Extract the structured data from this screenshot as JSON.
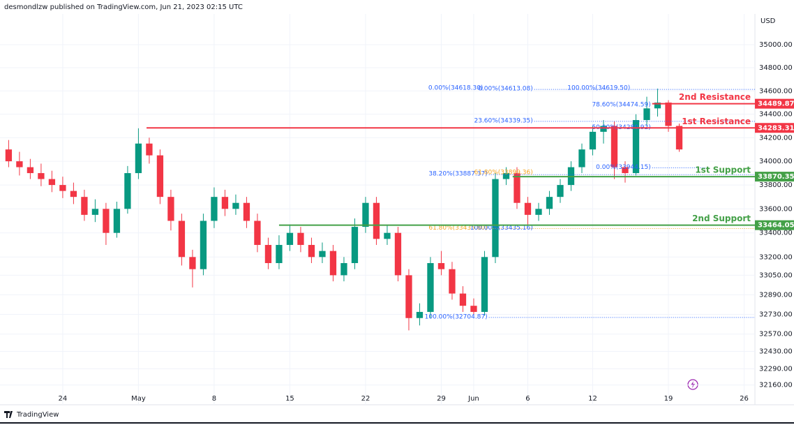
{
  "header": {
    "text": "desmondlzw published on TradingView.com, Jun 21, 2023 02:15 UTC"
  },
  "footer": {
    "brand": "TradingView"
  },
  "chart_data": {
    "type": "candlestick",
    "currency": "USD",
    "log_scale": true,
    "up_color": "#089981",
    "down_color": "#f23645",
    "x": [
      0,
      1,
      2,
      3,
      4,
      5,
      6,
      7,
      8,
      9,
      10,
      11,
      12,
      13,
      14,
      15,
      16,
      17,
      18,
      19,
      20,
      21,
      22,
      23,
      24,
      25,
      26,
      27,
      28,
      29,
      30,
      31,
      32,
      33,
      34,
      35,
      36,
      37,
      38,
      39,
      40,
      41,
      42,
      43,
      44,
      45,
      46,
      47,
      48,
      49,
      50,
      51,
      52,
      53,
      54,
      55,
      56,
      57,
      58,
      59,
      60,
      61,
      62
    ],
    "open": [
      34100,
      34000,
      33950,
      33900,
      33850,
      33800,
      33750,
      33700,
      33550,
      33600,
      33400,
      33600,
      33900,
      34150,
      34050,
      33700,
      33500,
      33200,
      33100,
      33500,
      33700,
      33600,
      33650,
      33500,
      33300,
      33150,
      33300,
      33400,
      33300,
      33200,
      33250,
      33050,
      33150,
      33450,
      33650,
      33350,
      33400,
      33050,
      32700,
      32750,
      33150,
      33100,
      32900,
      32800,
      32750,
      33200,
      33850,
      33900,
      33650,
      33550,
      33600,
      33700,
      33800,
      33950,
      34100,
      34250,
      34300,
      33950,
      33900,
      34350,
      34450,
      34500,
      34300
    ],
    "high": [
      34180,
      34080,
      34020,
      33980,
      33920,
      33870,
      33820,
      33760,
      33680,
      33650,
      33660,
      33960,
      34280,
      34200,
      34100,
      33760,
      33560,
      33260,
      33560,
      33780,
      33760,
      33720,
      33700,
      33560,
      33360,
      33380,
      33470,
      33450,
      33360,
      33320,
      33300,
      33200,
      33520,
      33700,
      33700,
      33460,
      33450,
      33100,
      32820,
      33200,
      33250,
      33160,
      32960,
      32860,
      33250,
      33900,
      33950,
      33950,
      33700,
      33650,
      33750,
      33850,
      34000,
      34150,
      34300,
      34350,
      34340,
      34000,
      34400,
      34550,
      34620,
      34520,
      34320
    ],
    "low": [
      33950,
      33880,
      33850,
      33790,
      33740,
      33690,
      33640,
      33500,
      33490,
      33300,
      33360,
      33560,
      33850,
      33980,
      33640,
      33420,
      33130,
      32950,
      33050,
      33440,
      33540,
      33550,
      33440,
      33240,
      33100,
      33100,
      33250,
      33240,
      33150,
      33150,
      33000,
      33000,
      33100,
      33400,
      33300,
      33300,
      33000,
      32600,
      32640,
      32700,
      33050,
      32850,
      32750,
      32720,
      32720,
      33150,
      33800,
      33600,
      33470,
      33500,
      33550,
      33650,
      33750,
      33900,
      34050,
      34150,
      33850,
      33820,
      33880,
      34300,
      34380,
      34250,
      34080
    ],
    "close": [
      34000,
      33950,
      33900,
      33850,
      33800,
      33750,
      33700,
      33550,
      33600,
      33400,
      33600,
      33900,
      34150,
      34050,
      33700,
      33500,
      33200,
      33100,
      33500,
      33700,
      33600,
      33650,
      33500,
      33300,
      33150,
      33300,
      33400,
      33300,
      33200,
      33250,
      33050,
      33150,
      33450,
      33650,
      33350,
      33400,
      33050,
      32700,
      32750,
      33150,
      33100,
      32900,
      32800,
      32750,
      33200,
      33850,
      33900,
      33650,
      33550,
      33600,
      33700,
      33800,
      33950,
      34100,
      34250,
      34300,
      33950,
      33900,
      34350,
      34450,
      34500,
      34300,
      34100
    ],
    "xlim": [
      -0.8,
      69
    ],
    "xticks": [
      {
        "value": 5,
        "label": "24"
      },
      {
        "value": 12,
        "label": "May"
      },
      {
        "value": 19,
        "label": "8"
      },
      {
        "value": 26,
        "label": "15"
      },
      {
        "value": 33,
        "label": "22"
      },
      {
        "value": 40,
        "label": "29"
      },
      {
        "value": 43,
        "label": "Jun"
      },
      {
        "value": 48,
        "label": "6"
      },
      {
        "value": 54,
        "label": "12"
      },
      {
        "value": 61,
        "label": "19"
      },
      {
        "value": 68,
        "label": "26"
      }
    ],
    "ylim": [
      32086,
      35391
    ],
    "yticks": [
      {
        "value": 35000,
        "label": "35000.00"
      },
      {
        "value": 34800,
        "label": "34800.00"
      },
      {
        "value": 34600,
        "label": "34600.00"
      },
      {
        "value": 34400,
        "label": "34400.00"
      },
      {
        "value": 34200,
        "label": "34200.00"
      },
      {
        "value": 34000,
        "label": "34000.00"
      },
      {
        "value": 33800,
        "label": "33800.00"
      },
      {
        "value": 33600,
        "label": "33600.00"
      },
      {
        "value": 33400,
        "label": "33400.00"
      },
      {
        "value": 33200,
        "label": "33200.00"
      },
      {
        "value": 33050,
        "label": "33050.00"
      },
      {
        "value": 32890,
        "label": "32890.00"
      },
      {
        "value": 32730,
        "label": "32730.00"
      },
      {
        "value": 32570,
        "label": "32570.00"
      },
      {
        "value": 32430,
        "label": "32430.00"
      },
      {
        "value": 32290,
        "label": "32290.00"
      },
      {
        "value": 32160,
        "label": "32160.00"
      }
    ],
    "levels": [
      {
        "name": "2nd Resistance",
        "value": 34489.87,
        "start": 59.5,
        "color": "#f23645"
      },
      {
        "name": "1st Resistance",
        "value": 34283.31,
        "start": 12.75,
        "color": "#f23645"
      },
      {
        "name": "1st Support",
        "value": 33870.35,
        "start": 46.6,
        "color": "#43a047"
      },
      {
        "name": "2nd Support",
        "value": 33464.05,
        "start": 25,
        "color": "#43a047"
      }
    ],
    "fib_labels": [
      {
        "text": "0.00%(34618.30)",
        "price": 34618.3,
        "x0": 44.0,
        "x1": 44.0,
        "color": "#2962ff"
      },
      {
        "text": "0.00%(34613.08)",
        "price": 34613.08,
        "x0": 48.6,
        "x1": 69,
        "color": "#2962ff"
      },
      {
        "text": "100.00%(34619.50)",
        "price": 34619.5,
        "x0": 57.6,
        "x1": 57.6,
        "color": "#2962ff"
      },
      {
        "text": "78.60%(34474.59)",
        "price": 34474.59,
        "x0": 59.5,
        "x1": 59.5,
        "color": "#2962ff"
      },
      {
        "text": "23.60%(34339.35)",
        "price": 34339.35,
        "x0": 48.6,
        "x1": 69,
        "color": "#2962ff"
      },
      {
        "text": "50.00%(34280.92)",
        "price": 34280.92,
        "x0": 59.5,
        "x1": 59.5,
        "color": "#2962ff"
      },
      {
        "text": "0.00%(33944.15)",
        "price": 33944.15,
        "x0": 59.5,
        "x1": 64.4,
        "color": "#2962ff"
      },
      {
        "text": "38.20%(33887.37)",
        "price": 33887.37,
        "x0": 44.4,
        "x1": 69,
        "color": "#2962ff"
      },
      {
        "text": "61.80%(33899.36)",
        "price": 33899.36,
        "x0": 48.6,
        "x1": 48.6,
        "color": "#f5a623"
      },
      {
        "text": "61.80%(33435.80)",
        "price": 33435.8,
        "x0": 44.4,
        "x1": 69,
        "color": "#f5a623"
      },
      {
        "text": "100.00%(33435.16)",
        "price": 33435.16,
        "x0": 48.6,
        "x1": 48.6,
        "color": "#2962ff"
      },
      {
        "text": "100.00%(32704.87)",
        "price": 32704.87,
        "x0": 44.4,
        "x1": 69,
        "color": "#2962ff"
      }
    ]
  }
}
